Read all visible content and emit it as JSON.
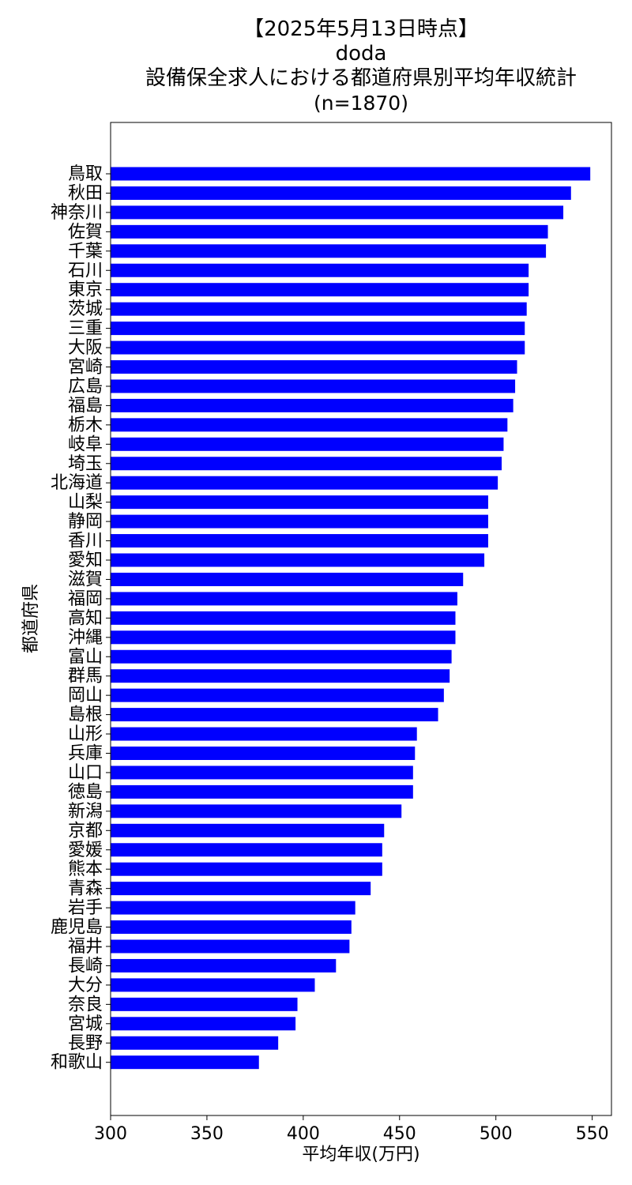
{
  "title": {
    "line1": "【2025年5月13日時点】",
    "line2": "doda",
    "line3": "設備保全求人における都道府県別平均年収統計",
    "line4": "(n=1870)"
  },
  "colors": {
    "bar": "#0000ff",
    "axis": "#000000",
    "background": "#ffffff"
  },
  "chart_data": {
    "type": "bar",
    "orientation": "horizontal",
    "title": "【2025年5月13日時点】 doda 設備保全求人における都道府県別平均年収統計 (n=1870)",
    "xlabel": "平均年収(万円)",
    "ylabel": "都道府県",
    "xlim": [
      300,
      560
    ],
    "xticks": [
      300,
      350,
      400,
      450,
      500,
      550
    ],
    "grid": false,
    "categories": [
      "鳥取",
      "秋田",
      "神奈川",
      "佐賀",
      "千葉",
      "石川",
      "東京",
      "茨城",
      "三重",
      "大阪",
      "宮崎",
      "広島",
      "福島",
      "栃木",
      "岐阜",
      "埼玉",
      "北海道",
      "山梨",
      "静岡",
      "香川",
      "愛知",
      "滋賀",
      "福岡",
      "高知",
      "沖縄",
      "富山",
      "群馬",
      "岡山",
      "島根",
      "山形",
      "兵庫",
      "山口",
      "徳島",
      "新潟",
      "京都",
      "愛媛",
      "熊本",
      "青森",
      "岩手",
      "鹿児島",
      "福井",
      "長崎",
      "大分",
      "奈良",
      "宮城",
      "長野",
      "和歌山"
    ],
    "values": [
      549,
      539,
      535,
      527,
      526,
      517,
      517,
      516,
      515,
      515,
      511,
      510,
      509,
      506,
      504,
      503,
      501,
      496,
      496,
      496,
      494,
      483,
      480,
      479,
      479,
      477,
      476,
      473,
      470,
      459,
      458,
      457,
      457,
      451,
      442,
      441,
      441,
      435,
      427,
      425,
      424,
      417,
      406,
      397,
      396,
      387,
      377
    ]
  }
}
